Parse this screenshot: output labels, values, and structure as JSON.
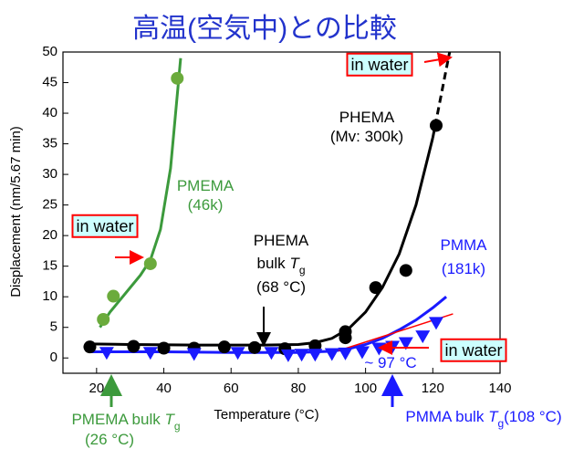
{
  "chart_data": {
    "type": "scatter",
    "title": "高温(空気中)との比較",
    "x_label": "Temperature (°C)",
    "y_label": "Displacement (nm/5.67 min)",
    "xlim": [
      10,
      140
    ],
    "xticks": [
      20,
      40,
      60,
      80,
      100,
      120,
      140
    ],
    "ylim": [
      -2.5,
      50
    ],
    "yticks": [
      0,
      5,
      10,
      15,
      20,
      25,
      30,
      35,
      40,
      45,
      50
    ],
    "series": [
      {
        "kind": "line",
        "color": "#3c9a3c",
        "x": [
          21,
          24,
          27,
          30,
          33,
          36,
          39,
          42,
          45
        ],
        "values": [
          5,
          7.5,
          9.5,
          11.5,
          13.5,
          16,
          21,
          31,
          49
        ]
      },
      {
        "kind": "line",
        "color": "#000000",
        "dash_from_x": 120,
        "x": [
          18,
          30,
          50,
          70,
          80,
          85,
          90,
          95,
          100,
          105,
          110,
          115,
          120,
          125
        ],
        "values": [
          2.3,
          2.2,
          2.1,
          2.1,
          2.2,
          2.5,
          3.2,
          4.8,
          7.5,
          11.5,
          17,
          25,
          36,
          50
        ]
      },
      {
        "kind": "line",
        "color": "#1a1aff",
        "x": [
          18,
          40,
          60,
          80,
          90,
          95,
          100,
          105,
          110,
          115,
          120,
          124
        ],
        "values": [
          1.0,
          1.0,
          0.9,
          0.9,
          1.1,
          1.5,
          2.2,
          3.2,
          4.6,
          6.2,
          8.2,
          10
        ]
      },
      {
        "kind": "line",
        "color": "#ff0000",
        "x": [
          92,
          126
        ],
        "values": [
          1.2,
          7.2
        ]
      },
      {
        "kind": "points",
        "marker": "circle",
        "color": "#6bab3c",
        "x": [
          22,
          25,
          36,
          44
        ],
        "values": [
          6.3,
          10.1,
          15.4,
          45.7
        ]
      },
      {
        "kind": "points",
        "marker": "circle",
        "color": "#000000",
        "x": [
          18,
          31,
          40,
          49,
          58,
          67,
          76,
          85,
          94,
          94,
          103,
          112,
          121
        ],
        "values": [
          1.8,
          1.9,
          1.6,
          1.6,
          1.8,
          1.7,
          1.5,
          2.0,
          3.3,
          4.3,
          11.5,
          14.3,
          38.0
        ]
      },
      {
        "kind": "points",
        "marker": "triangle",
        "color": "#1a1aff",
        "x": [
          23,
          36,
          49,
          62,
          72,
          77,
          81,
          85,
          90,
          94,
          99,
          104,
          108,
          112,
          117,
          121
        ],
        "values": [
          0.9,
          0.9,
          0.7,
          0.9,
          0.9,
          0.5,
          0.6,
          0.6,
          0.7,
          0.8,
          1.0,
          1.6,
          1.9,
          2.5,
          3.6,
          5.8
        ]
      }
    ],
    "annotations": [
      [
        "in water"
      ],
      [
        "in water"
      ],
      [
        "in water"
      ],
      [
        "PHEMA"
      ],
      [
        "(Mv: 300k)"
      ],
      [
        "PMEMA"
      ],
      [
        "(46k)"
      ],
      [
        "PHEMA"
      ],
      [
        "bulk ",
        "T",
        "g"
      ],
      [
        "(68 °C)"
      ],
      [
        "PMMA"
      ],
      [
        "(181k)"
      ],
      [
        "~ 97 °C"
      ],
      [
        "PMEMA bulk ",
        "T",
        "g"
      ],
      [
        "(26 °C)"
      ],
      [
        "PMMA bulk ",
        "T",
        "g",
        "(108 °C)"
      ]
    ]
  }
}
